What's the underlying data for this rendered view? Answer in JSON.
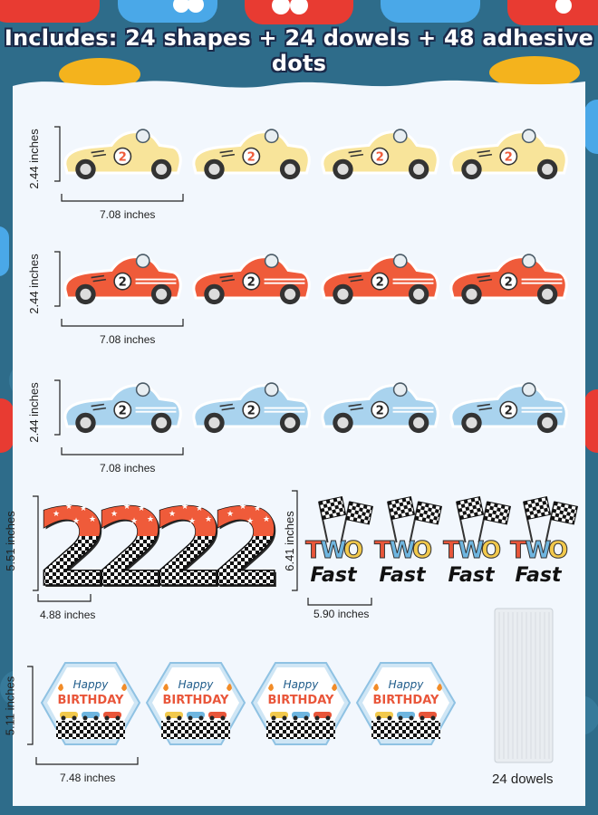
{
  "header": {
    "title": "Includes: 24 shapes + 24 dowels + 48 adhesive dots"
  },
  "colors": {
    "background": "#2e6c8a",
    "panel": "#f2f7fd",
    "car_yellow": "#f8e49a",
    "car_red": "#ef5b3a",
    "car_blue": "#a9d3ee",
    "number_red": "#ef5b3a"
  },
  "rows": [
    {
      "height_label": "2.44 inches",
      "width_label": "7.08 inches",
      "color_name": "yellow",
      "car_number": "2"
    },
    {
      "height_label": "2.44 inches",
      "width_label": "7.08 inches",
      "color_name": "red",
      "car_number": "2"
    },
    {
      "height_label": "2.44 inches",
      "width_label": "7.08 inches",
      "color_name": "blue",
      "car_number": "2"
    }
  ],
  "numbers_block": {
    "height_label": "5.51 inches",
    "width_label": "4.88 inches",
    "digit": "2"
  },
  "twofast_block": {
    "height_label": "6.41 inches",
    "width_label": "5.90 inches",
    "top_text": "TWO",
    "bottom_text": "Fast"
  },
  "birthday_block": {
    "height_label": "5.11 inches",
    "width_label": "7.48 inches",
    "line1": "Happy",
    "line2": "BIRTHDAY"
  },
  "dowels": {
    "label": "24 dowels"
  }
}
